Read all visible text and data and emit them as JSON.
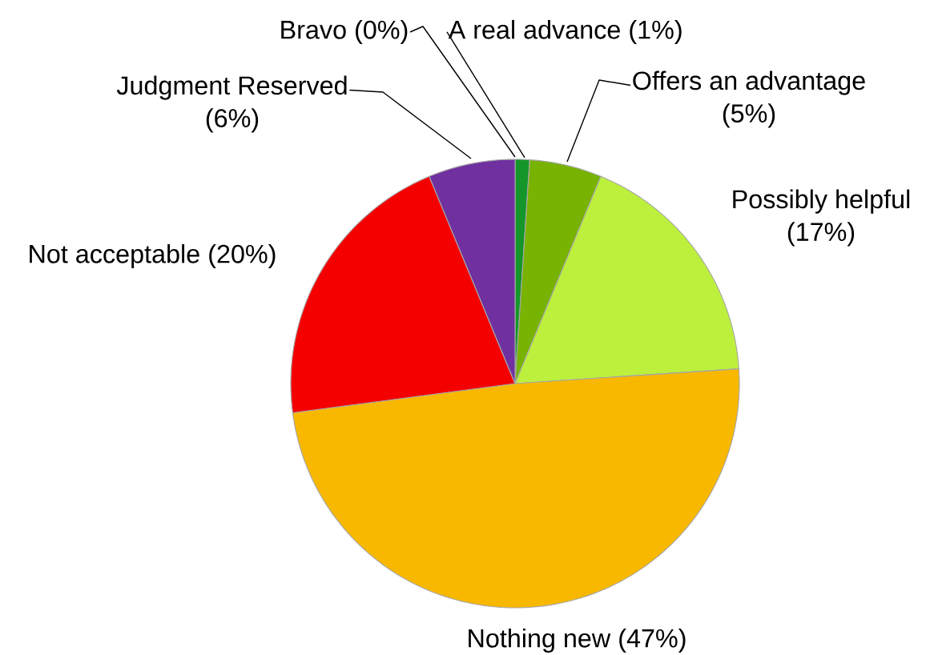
{
  "chart_data": {
    "type": "pie",
    "categories": [
      "Bravo",
      "A real advance",
      "Offers an advantage",
      "Possibly helpful",
      "Nothing new",
      "Not acceptable",
      "Judgment Reserved"
    ],
    "values": [
      0,
      1,
      5,
      17,
      47,
      20,
      6
    ],
    "value_labels": [
      "(0%)",
      "(1%)",
      "(5%)",
      "(17%)",
      "(47%)",
      "(20%)",
      "(6%)"
    ],
    "colors": [
      "#f2f2f2",
      "#14962a",
      "#77b300",
      "#bdf03c",
      "#f8b800",
      "#f50000",
      "#7030a0"
    ]
  }
}
